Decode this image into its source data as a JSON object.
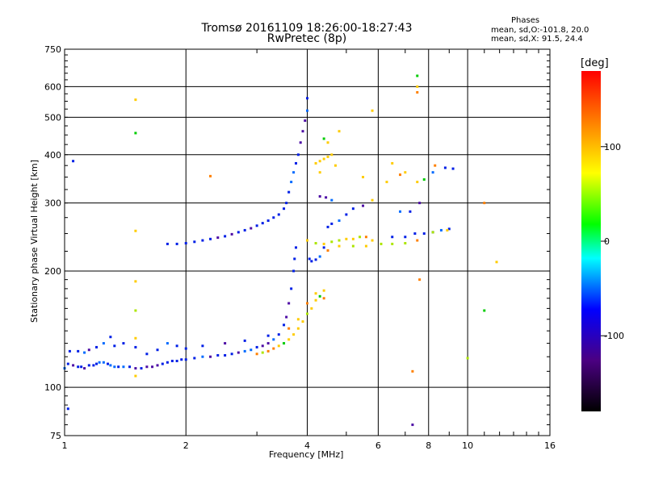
{
  "window": {
    "title_line1": "Tromsø 20161109 18:26:00-18:27:43",
    "title_line2": "RwPretec (8p)"
  },
  "phases": {
    "heading": "Phases",
    "line_o": "mean, sd,O:-101.8, 20.0",
    "line_x": "mean, sd,X:  91.5, 24.4"
  },
  "chart_data": {
    "type": "scatter",
    "title": "Tromsø 20161109 18:26:00-18:27:43",
    "subtitle": "RwPretec (8p)",
    "xlabel": "Frequency [MHz]",
    "ylabel": "Stationary phase Virtual Height [km]",
    "x_scale": "log",
    "y_scale": "log",
    "xlim": [
      1,
      16
    ],
    "ylim": [
      75,
      750
    ],
    "x_ticks": [
      1,
      2,
      4,
      6,
      8,
      10,
      16
    ],
    "x_tick_labels": [
      "1",
      "2",
      "4",
      "6",
      "8",
      "10",
      "16"
    ],
    "y_ticks": [
      75,
      100,
      200,
      300,
      400,
      500,
      600,
      750
    ],
    "y_tick_labels": [
      "75",
      "100",
      "200",
      "300",
      "400",
      "500",
      "600",
      "750"
    ],
    "grid": true,
    "colorbar": {
      "label": "[deg]",
      "range": [
        -180,
        180
      ],
      "ticks": [
        -100,
        0,
        100
      ],
      "tick_labels": [
        "-100",
        "0",
        "100"
      ]
    },
    "series": [
      {
        "mode": "O",
        "phase_mean": -101.8,
        "phase_sd": 20.0,
        "points": [
          [
            1.0,
            112
          ],
          [
            1.02,
            115
          ],
          [
            1.05,
            114
          ],
          [
            1.08,
            113
          ],
          [
            1.1,
            113
          ],
          [
            1.12,
            112
          ],
          [
            1.15,
            114
          ],
          [
            1.18,
            114
          ],
          [
            1.2,
            115
          ],
          [
            1.22,
            116
          ],
          [
            1.25,
            116
          ],
          [
            1.28,
            115
          ],
          [
            1.3,
            114
          ],
          [
            1.33,
            113
          ],
          [
            1.36,
            113
          ],
          [
            1.4,
            113
          ],
          [
            1.45,
            113
          ],
          [
            1.5,
            112
          ],
          [
            1.55,
            112
          ],
          [
            1.6,
            113
          ],
          [
            1.65,
            113
          ],
          [
            1.7,
            114
          ],
          [
            1.75,
            115
          ],
          [
            1.8,
            116
          ],
          [
            1.85,
            117
          ],
          [
            1.9,
            117
          ],
          [
            1.95,
            118
          ],
          [
            2.0,
            118
          ],
          [
            2.1,
            119
          ],
          [
            2.2,
            120
          ],
          [
            2.3,
            120
          ],
          [
            2.4,
            121
          ],
          [
            2.5,
            121
          ],
          [
            2.6,
            122
          ],
          [
            2.7,
            123
          ],
          [
            2.8,
            124
          ],
          [
            2.9,
            125
          ],
          [
            3.0,
            127
          ],
          [
            3.1,
            128
          ],
          [
            3.2,
            130
          ],
          [
            3.3,
            133
          ],
          [
            3.4,
            137
          ],
          [
            3.5,
            145
          ],
          [
            3.55,
            152
          ],
          [
            3.6,
            165
          ],
          [
            3.65,
            180
          ],
          [
            3.7,
            200
          ],
          [
            3.72,
            215
          ],
          [
            3.75,
            230
          ],
          [
            1.03,
            124
          ],
          [
            1.08,
            124
          ],
          [
            1.12,
            123
          ],
          [
            1.15,
            125
          ],
          [
            1.2,
            127
          ],
          [
            1.25,
            130
          ],
          [
            1.3,
            135
          ],
          [
            1.33,
            128
          ],
          [
            1.4,
            130
          ],
          [
            1.5,
            127
          ],
          [
            1.6,
            122
          ],
          [
            1.7,
            125
          ],
          [
            1.8,
            130
          ],
          [
            1.9,
            128
          ],
          [
            2.0,
            126
          ],
          [
            2.2,
            128
          ],
          [
            2.5,
            130
          ],
          [
            2.8,
            132
          ],
          [
            3.2,
            136
          ],
          [
            1.8,
            235
          ],
          [
            1.9,
            235
          ],
          [
            2.0,
            236
          ],
          [
            2.1,
            238
          ],
          [
            2.2,
            240
          ],
          [
            2.3,
            242
          ],
          [
            2.4,
            244
          ],
          [
            2.5,
            246
          ],
          [
            2.6,
            249
          ],
          [
            2.7,
            252
          ],
          [
            2.8,
            255
          ],
          [
            2.9,
            258
          ],
          [
            3.0,
            262
          ],
          [
            3.1,
            266
          ],
          [
            3.2,
            270
          ],
          [
            3.3,
            275
          ],
          [
            3.4,
            280
          ],
          [
            3.5,
            290
          ],
          [
            3.55,
            300
          ],
          [
            3.6,
            320
          ],
          [
            3.65,
            340
          ],
          [
            3.7,
            360
          ],
          [
            3.75,
            380
          ],
          [
            3.8,
            400
          ],
          [
            3.85,
            430
          ],
          [
            3.9,
            460
          ],
          [
            3.95,
            490
          ],
          [
            4.0,
            520
          ],
          [
            4.0,
            560
          ],
          [
            4.05,
            215
          ],
          [
            4.1,
            212
          ],
          [
            4.2,
            214
          ],
          [
            4.3,
            218
          ],
          [
            4.4,
            230
          ],
          [
            4.5,
            260
          ],
          [
            4.6,
            265
          ],
          [
            4.8,
            270
          ],
          [
            5.0,
            280
          ],
          [
            4.3,
            312
          ],
          [
            4.45,
            310
          ],
          [
            4.6,
            305
          ],
          [
            5.2,
            290
          ],
          [
            5.5,
            295
          ],
          [
            6.5,
            245
          ],
          [
            7.0,
            245
          ],
          [
            7.4,
            250
          ],
          [
            7.8,
            250
          ],
          [
            8.2,
            252
          ],
          [
            8.6,
            255
          ],
          [
            9.0,
            257
          ],
          [
            6.8,
            285
          ],
          [
            7.2,
            285
          ],
          [
            7.6,
            300
          ],
          [
            8.2,
            360
          ],
          [
            8.8,
            370
          ],
          [
            9.2,
            368
          ],
          [
            7.3,
            80
          ],
          [
            1.05,
            385
          ],
          [
            1.02,
            88
          ]
        ]
      },
      {
        "mode": "X",
        "phase_mean": 91.5,
        "phase_sd": 24.4,
        "points": [
          [
            3.0,
            122
          ],
          [
            3.1,
            123
          ],
          [
            3.2,
            124
          ],
          [
            3.3,
            126
          ],
          [
            3.4,
            128
          ],
          [
            3.5,
            130
          ],
          [
            3.6,
            133
          ],
          [
            3.7,
            137
          ],
          [
            3.8,
            142
          ],
          [
            3.9,
            148
          ],
          [
            4.0,
            155
          ],
          [
            4.1,
            160
          ],
          [
            4.2,
            168
          ],
          [
            4.3,
            172
          ],
          [
            4.4,
            178
          ],
          [
            3.6,
            142
          ],
          [
            3.8,
            150
          ],
          [
            4.0,
            165
          ],
          [
            4.2,
            175
          ],
          [
            4.4,
            170
          ],
          [
            4.2,
            380
          ],
          [
            4.3,
            385
          ],
          [
            4.4,
            390
          ],
          [
            4.5,
            395
          ],
          [
            4.6,
            400
          ],
          [
            4.4,
            440
          ],
          [
            4.5,
            430
          ],
          [
            4.8,
            460
          ],
          [
            4.3,
            360
          ],
          [
            4.7,
            375
          ],
          [
            4.0,
            240
          ],
          [
            4.2,
            236
          ],
          [
            4.4,
            235
          ],
          [
            4.6,
            238
          ],
          [
            4.8,
            240
          ],
          [
            5.0,
            242
          ],
          [
            5.2,
            242
          ],
          [
            5.4,
            245
          ],
          [
            5.6,
            245
          ],
          [
            5.8,
            240
          ],
          [
            4.5,
            226
          ],
          [
            4.8,
            232
          ],
          [
            5.2,
            232
          ],
          [
            5.6,
            232
          ],
          [
            6.1,
            235
          ],
          [
            6.5,
            235
          ],
          [
            7.0,
            236
          ],
          [
            7.5,
            240
          ],
          [
            8.2,
            252
          ],
          [
            8.9,
            255
          ],
          [
            5.5,
            350
          ],
          [
            6.5,
            380
          ],
          [
            7.0,
            360
          ],
          [
            7.5,
            340
          ],
          [
            6.3,
            340
          ],
          [
            6.8,
            355
          ],
          [
            7.8,
            345
          ],
          [
            8.3,
            375
          ],
          [
            7.5,
            600
          ],
          [
            7.5,
            640
          ],
          [
            7.5,
            580
          ],
          [
            5.8,
            520
          ],
          [
            7.3,
            110
          ],
          [
            1.5,
            555
          ],
          [
            1.5,
            455
          ],
          [
            1.5,
            254
          ],
          [
            1.5,
            188
          ],
          [
            1.5,
            158
          ],
          [
            1.5,
            134
          ],
          [
            1.5,
            107
          ],
          [
            11.0,
            300
          ],
          [
            11.0,
            158
          ],
          [
            11.8,
            211
          ],
          [
            10.0,
            119
          ],
          [
            2.3,
            352
          ],
          [
            5.8,
            305
          ],
          [
            7.6,
            190
          ]
        ]
      }
    ]
  }
}
